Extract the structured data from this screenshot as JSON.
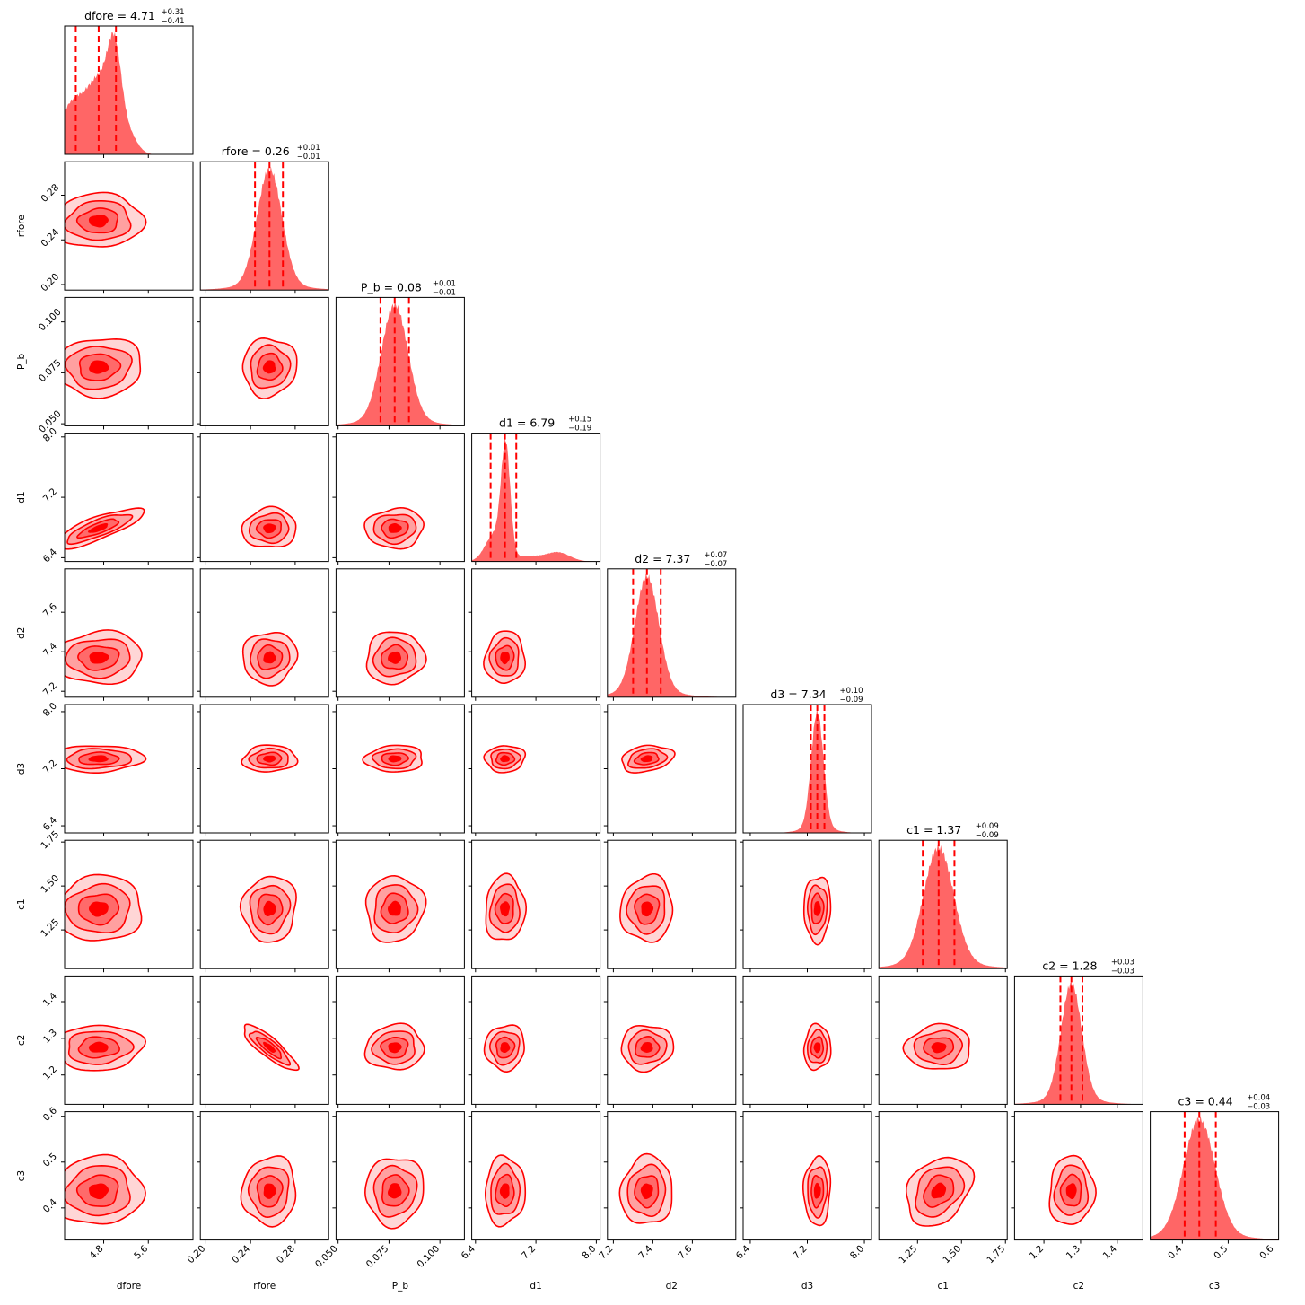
{
  "chart_data": {
    "type": "corner",
    "color": "#ff0000",
    "fill_color": "#ff6666",
    "params": [
      {
        "name": "dfore",
        "median": "4.71",
        "plus": "+0.31",
        "minus": "−0.41",
        "range": [
          4.1,
          6.4
        ],
        "ticks": [
          4.8,
          5.6
        ],
        "tick_labels": [
          "4.8",
          "5.6"
        ],
        "center": 4.71,
        "sigma": 0.36,
        "q": [
          4.3,
          4.71,
          5.02
        ],
        "hist_shape": "dfore"
      },
      {
        "name": "rfore",
        "median": "0.26",
        "plus": "+0.01",
        "minus": "−0.01",
        "range": [
          0.195,
          0.31
        ],
        "ticks": [
          0.2,
          0.24,
          0.28
        ],
        "tick_labels": [
          "0.20",
          "0.24",
          "0.28"
        ],
        "center": 0.257,
        "sigma": 0.011,
        "q": [
          0.244,
          0.257,
          0.269
        ],
        "hist_shape": "normal"
      },
      {
        "name": "P_b",
        "median": "0.08",
        "plus": "+0.01",
        "minus": "−0.01",
        "range": [
          0.049,
          0.112
        ],
        "ticks": [
          0.05,
          0.075,
          0.1
        ],
        "tick_labels": [
          "0.050",
          "0.075",
          "0.100"
        ],
        "center": 0.0778,
        "sigma": 0.0065,
        "q": [
          0.0708,
          0.0778,
          0.0848
        ],
        "hist_shape": "normal"
      },
      {
        "name": "d1",
        "median": "6.79",
        "plus": "+0.15",
        "minus": "−0.19",
        "range": [
          6.35,
          8.05
        ],
        "ticks": [
          6.4,
          7.2,
          8.0
        ],
        "tick_labels": [
          "6.4",
          "7.2",
          "8.0"
        ],
        "center": 6.79,
        "sigma": 0.12,
        "q": [
          6.6,
          6.79,
          6.94
        ],
        "hist_shape": "d1"
      },
      {
        "name": "d2",
        "median": "7.37",
        "plus": "+0.07",
        "minus": "−0.07",
        "range": [
          7.17,
          7.82
        ],
        "ticks": [
          7.2,
          7.4,
          7.6
        ],
        "tick_labels": [
          "7.2",
          "7.4",
          "7.6"
        ],
        "center": 7.37,
        "sigma": 0.06,
        "q": [
          7.3,
          7.37,
          7.44
        ],
        "hist_shape": "normal"
      },
      {
        "name": "d3",
        "median": "7.34",
        "plus": "+0.10",
        "minus": "−0.09",
        "range": [
          6.3,
          8.1
        ],
        "ticks": [
          6.4,
          7.2,
          8.0
        ],
        "tick_labels": [
          "6.4",
          "7.2",
          "8.0"
        ],
        "center": 7.34,
        "sigma": 0.085,
        "q": [
          7.25,
          7.34,
          7.44
        ],
        "hist_shape": "normal"
      },
      {
        "name": "c1",
        "median": "1.37",
        "plus": "+0.09",
        "minus": "−0.09",
        "range": [
          1.03,
          1.76
        ],
        "ticks": [
          1.25,
          1.5,
          1.75
        ],
        "tick_labels": [
          "1.25",
          "1.50",
          "1.75"
        ],
        "center": 1.37,
        "sigma": 0.085,
        "q": [
          1.28,
          1.37,
          1.46
        ],
        "hist_shape": "normal"
      },
      {
        "name": "c2",
        "median": "1.28",
        "plus": "+0.03",
        "minus": "−0.03",
        "range": [
          1.12,
          1.47
        ],
        "ticks": [
          1.2,
          1.3,
          1.4
        ],
        "tick_labels": [
          "1.2",
          "1.3",
          "1.4"
        ],
        "center": 1.275,
        "sigma": 0.028,
        "q": [
          1.245,
          1.275,
          1.305
        ],
        "hist_shape": "normal"
      },
      {
        "name": "c3",
        "median": "0.44",
        "plus": "+0.04",
        "minus": "−0.03",
        "range": [
          0.33,
          0.61
        ],
        "ticks": [
          0.4,
          0.5,
          0.6
        ],
        "tick_labels": [
          "0.4",
          "0.5",
          "0.6"
        ],
        "center": 0.437,
        "sigma": 0.034,
        "q": [
          0.405,
          0.437,
          0.473
        ],
        "hist_shape": "normal"
      }
    ],
    "contour_levels": 4,
    "quantile_line_style": "dashed",
    "grid": false,
    "legend": "none"
  }
}
